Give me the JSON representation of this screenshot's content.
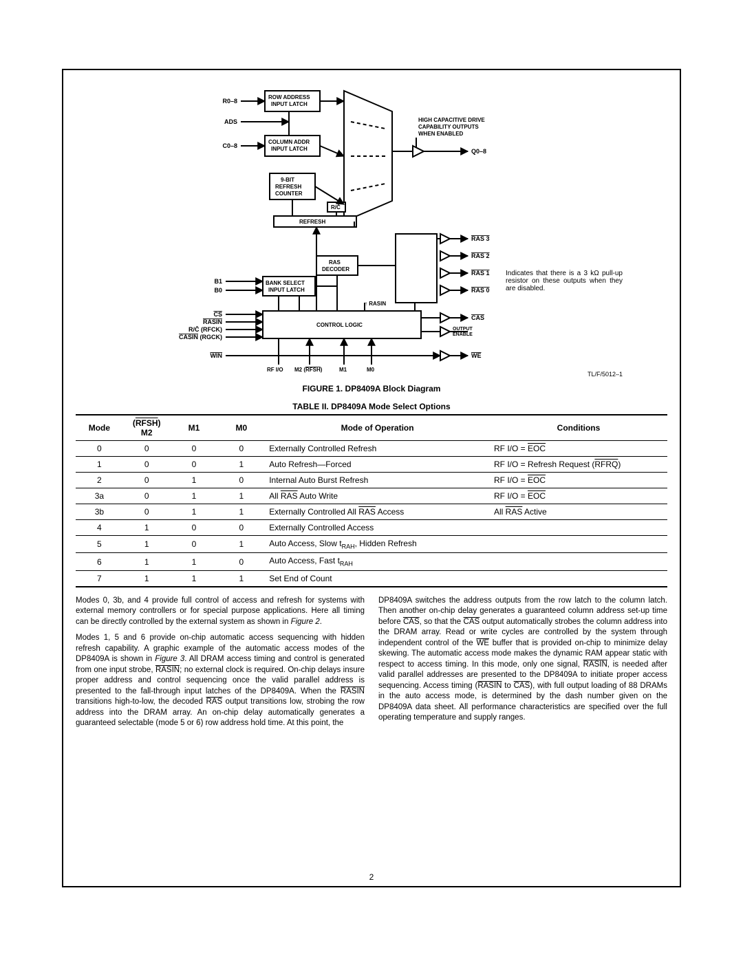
{
  "diagram": {
    "ref": "TL/F/5012–1",
    "caption": "FIGURE 1. DP8409A Block Diagram",
    "note": "Indicates that there is a 3 kΩ pull-up resistor on these outputs when they are disabled.",
    "left_signals_top": [
      "R0–8",
      "ADS",
      "C0–8"
    ],
    "left_signals_mid": [
      "B1",
      "B0"
    ],
    "left_signals_bot": [
      "CS",
      "RASIN",
      "R/C (RFCK)",
      "CASIN (RGCK)",
      "WIN"
    ],
    "right_top_label": [
      "HIGH CAPACITIVE DRIVE",
      "CAPABILITY OUTPUTS",
      "WHEN ENABLED"
    ],
    "right_q": "Q0–8",
    "right_ras": [
      "RAS 3",
      "RAS 2",
      "RAS 1",
      "RAS 0"
    ],
    "right_bot": [
      "CAS",
      "OUTPUT ENABLE",
      "WE"
    ],
    "blocks": {
      "row_latch": "ROW ADDRESS INPUT LATCH",
      "col_latch": "COLUMN ADDR INPUT LATCH",
      "refresh_ctr": "9-BIT REFRESH COUNTER",
      "refresh": "REFRESH",
      "rc": "R/C",
      "ras_decoder": "RAS DECODER",
      "bank_latch": "BANK SELECT INPUT LATCH",
      "control_logic": "CONTROL LOGIC",
      "rasin": "RASIN"
    },
    "bottom_pins": [
      "RF I/O",
      "M2 (RFSH)",
      "M1",
      "M0"
    ]
  },
  "table": {
    "caption": "TABLE II. DP8409A Mode Select Options",
    "headers": {
      "mode": "Mode",
      "m2a": "(RFSH)",
      "m2b": "M2",
      "m1": "M1",
      "m0": "M0",
      "op": "Mode of Operation",
      "cond": "Conditions"
    },
    "rows": [
      {
        "mode": "0",
        "m2": "0",
        "m1": "0",
        "m0": "0",
        "op": "Externally Controlled Refresh",
        "cond": "RF I/O = <ov>EOC</ov>"
      },
      {
        "mode": "1",
        "m2": "0",
        "m1": "0",
        "m0": "1",
        "op": "Auto Refresh—Forced",
        "cond": "RF I/O = Refresh Request (<ov>RFRQ</ov>)"
      },
      {
        "mode": "2",
        "m2": "0",
        "m1": "1",
        "m0": "0",
        "op": "Internal Auto Burst Refresh",
        "cond": "RF I/O = <ov>EOC</ov>"
      },
      {
        "mode": "3a",
        "m2": "0",
        "m1": "1",
        "m0": "1",
        "op": "All <ov>RAS</ov> Auto Write",
        "cond": "RF I/O = <ov>EOC</ov>"
      },
      {
        "mode": "3b",
        "m2": "0",
        "m1": "1",
        "m0": "1",
        "op": "Externally Controlled All <ov>RAS</ov> Access",
        "cond": "All <ov>RAS</ov> Active"
      },
      {
        "mode": "4",
        "m2": "1",
        "m1": "0",
        "m0": "0",
        "op": "Externally Controlled Access",
        "cond": ""
      },
      {
        "mode": "5",
        "m2": "1",
        "m1": "0",
        "m0": "1",
        "op": "Auto Access, Slow t<sub>RAH</sub>, Hidden Refresh",
        "cond": ""
      },
      {
        "mode": "6",
        "m2": "1",
        "m1": "1",
        "m0": "0",
        "op": "Auto Access, Fast t<sub>RAH</sub>",
        "cond": ""
      },
      {
        "mode": "7",
        "m2": "1",
        "m1": "1",
        "m0": "1",
        "op": "Set End of Count",
        "cond": ""
      }
    ]
  },
  "body": {
    "p1": "Modes 0, 3b, and 4 provide full control of access and refresh for systems with external memory controllers or for special purpose applications. Here all timing can be directly controlled by the external system as shown in <i>Figure 2</i>.",
    "p2": "Modes 1, 5 and 6 provide on-chip automatic access sequencing with hidden refresh capability. A graphic example of the automatic access modes of the DP8409A is shown in <i>Figure 3</i>. All DRAM access timing and control is generated from one input strobe, <span class=\"ov\">RASIN</span>; no external clock is required. On-chip delays insure proper address and control sequencing once the valid parallel address is presented to the fall-through input latches of the DP8409A. When the <span class=\"ov\">RASIN</span> transitions high-to-low, the decoded <span class=\"ov\">RAS</span> output transitions low, strobing the row address into the DRAM array. An on-chip delay automatically generates a guaranteed selectable (mode 5 or 6) row address hold time. At this point, the",
    "p3": "DP8409A switches the address outputs from the row latch to the column latch. Then another on-chip delay generates a guaranteed column address set-up time before <span class=\"ov\">CAS</span>, so that the <span class=\"ov\">CAS</span> output automatically strobes the column address into the DRAM array. Read or write cycles are controlled by the system through independent control of the <span class=\"ov\">WE</span> buffer that is provided on-chip to minimize delay skewing. The automatic access mode makes the dynamic RAM appear static with respect to access timing. In this mode, only one signal, <span class=\"ov\">RASIN</span>, is needed after valid parallel addresses are presented to the DP8409A to initiate proper access sequencing. Access timing (<span class=\"ov\">RASIN</span> to <span class=\"ov\">CAS</span>), with full output loading of 88 DRAMs in the auto access mode, is determined by the dash number given on the DP8409A data sheet. All performance characteristics are specified over the full operating temperature and supply ranges."
  },
  "page_number": "2"
}
